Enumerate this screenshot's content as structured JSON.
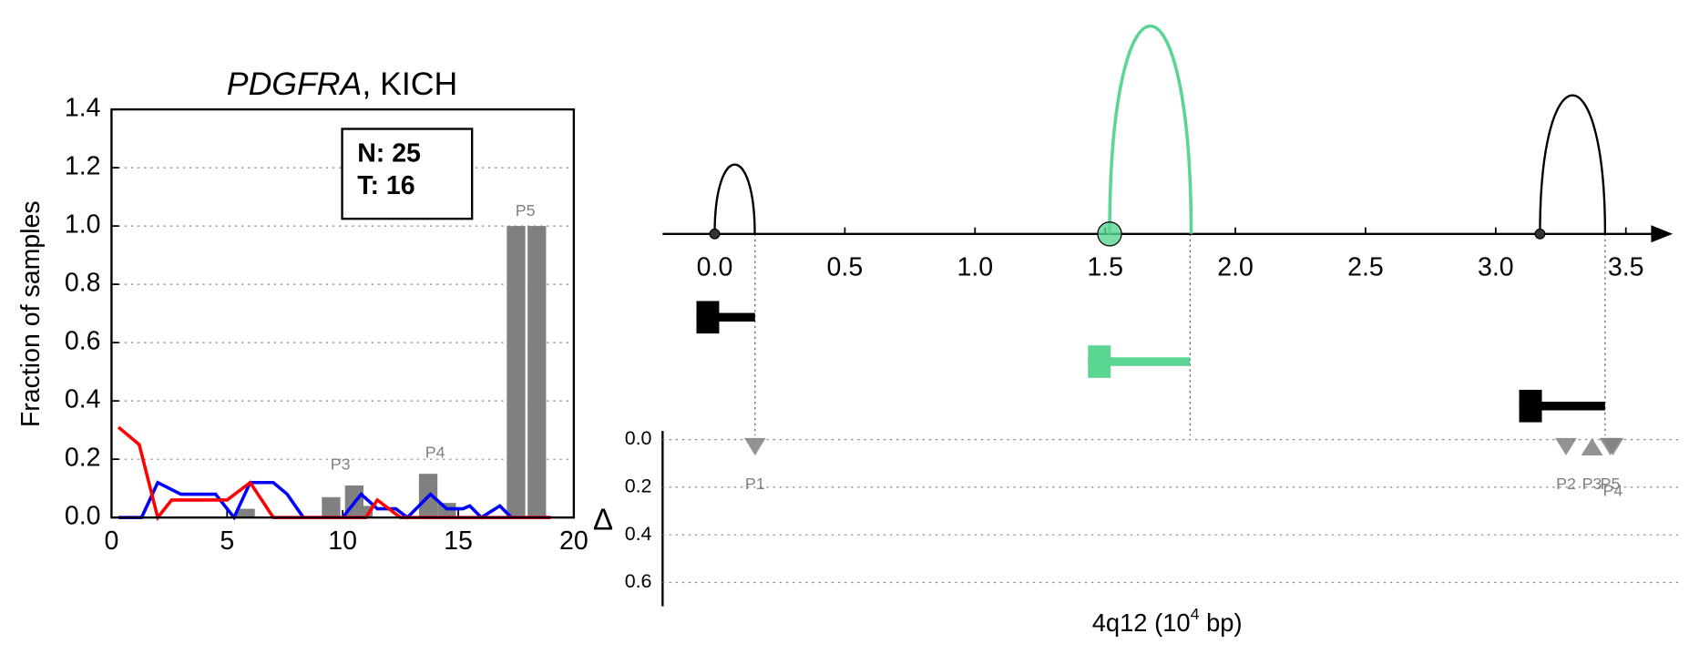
{
  "chart_data": [
    {
      "type": "line-bar",
      "title_gene": "PDGFRA",
      "title_rest": ", KICH",
      "ylabel": "Fraction of samples",
      "stats": [
        "N: 25",
        "T: 16"
      ],
      "xlim": [
        0,
        20
      ],
      "xticks": [
        0,
        5,
        10,
        15,
        20
      ],
      "ylim": [
        0,
        1.4
      ],
      "yticks": [
        {
          "value": 0,
          "label": "0.0"
        },
        {
          "value": 0.2,
          "label": "0.2"
        },
        {
          "value": 0.4,
          "label": "0.4"
        },
        {
          "value": 0.6,
          "label": "0.6"
        },
        {
          "value": 0.8,
          "label": "0.8"
        },
        {
          "value": 1.0,
          "label": "1.0"
        },
        {
          "value": 1.2,
          "label": "1.2"
        },
        {
          "value": 1.4,
          "label": "1.4"
        }
      ],
      "grid": true,
      "bars": {
        "color": "#808080",
        "x": [
          5.8,
          9.5,
          10.5,
          10.9,
          13.7,
          14.5,
          17.5,
          18.4
        ],
        "values": [
          0.03,
          0.07,
          0.11,
          0.04,
          0.15,
          0.05,
          1.0,
          1.0
        ]
      },
      "series": [
        {
          "color": "#0000ff",
          "x": [
            0.3,
            1.3,
            2,
            3,
            4.5,
            5.3,
            6,
            7,
            7.6,
            8.3,
            10,
            10.8,
            11.5,
            12.3,
            12.8,
            13.8,
            14.5,
            15.2,
            15.5,
            16,
            16.8,
            17.3,
            19
          ],
          "values": [
            0,
            0,
            0.12,
            0.08,
            0.08,
            0,
            0.12,
            0.12,
            0.08,
            0,
            0,
            0.08,
            0.03,
            0.03,
            0,
            0.08,
            0.03,
            0.03,
            0.04,
            0,
            0.04,
            0,
            0
          ]
        },
        {
          "color": "#ff0000",
          "x": [
            0.3,
            1.2,
            2,
            2.6,
            5,
            6,
            7,
            11,
            11.5,
            12,
            12.5,
            19
          ],
          "values": [
            0.31,
            0.25,
            0,
            0.06,
            0.06,
            0.12,
            0,
            0,
            0.06,
            0.03,
            0,
            0
          ]
        }
      ],
      "annotations": [
        {
          "text": "P3",
          "x": 9.9,
          "y": 0.18
        },
        {
          "text": "P4",
          "x": 14.0,
          "y": 0.22
        },
        {
          "text": "P5",
          "x": 17.9,
          "y": 1.05
        }
      ]
    },
    {
      "type": "gene-track",
      "xlabel_main": "4q12 (10",
      "xlabel_sup": "4",
      "xlabel_end": " bp)",
      "xlim": [
        -0.2,
        3.68
      ],
      "xticks": [
        {
          "value": 0,
          "label": "0.0"
        },
        {
          "value": 0.5,
          "label": "0.5"
        },
        {
          "value": 1.0,
          "label": "1.0"
        },
        {
          "value": 1.5,
          "label": "1.5"
        },
        {
          "value": 2.0,
          "label": "2.0"
        },
        {
          "value": 2.5,
          "label": "2.5"
        },
        {
          "value": 3.0,
          "label": "3.0"
        },
        {
          "value": 3.5,
          "label": "3.5"
        }
      ],
      "arcs": [
        {
          "start": 0,
          "end": 0.154,
          "height": 1,
          "color": "#000000",
          "highlight": false
        },
        {
          "start": 1.517,
          "end": 1.83,
          "height": 3,
          "color": "#5ad692",
          "highlight": true
        },
        {
          "start": 3.17,
          "end": 3.42,
          "height": 2,
          "color": "#000000",
          "highlight": false
        }
      ],
      "genes": [
        {
          "start": -0.07,
          "end": 0.155,
          "color": "#000000"
        },
        {
          "start": 1.434,
          "end": 1.826,
          "color": "#5ad692"
        },
        {
          "start": 3.09,
          "end": 3.42,
          "color": "#000000"
        }
      ],
      "delta_label": "Δ",
      "ylim": [
        0,
        0.7
      ],
      "yticks": [
        {
          "value": 0,
          "label": "0.0"
        },
        {
          "value": 0.2,
          "label": "0.2"
        },
        {
          "value": 0.4,
          "label": "0.4"
        },
        {
          "value": 0.6,
          "label": "0.6"
        }
      ],
      "grid": true,
      "points": [
        {
          "name": "P1",
          "x": 0.155,
          "delta": 0.03,
          "direction": "down"
        },
        {
          "name": "P2",
          "x": 3.27,
          "delta": 0.03,
          "direction": "down"
        },
        {
          "name": "P3",
          "x": 3.37,
          "delta": 0.03,
          "direction": "up"
        },
        {
          "name": "P4",
          "x": 3.45,
          "delta": 0.03,
          "direction": "down"
        },
        {
          "name": "P5",
          "x": 3.44,
          "delta": 0.03,
          "direction": "down"
        }
      ],
      "point_color": "#808080"
    }
  ]
}
